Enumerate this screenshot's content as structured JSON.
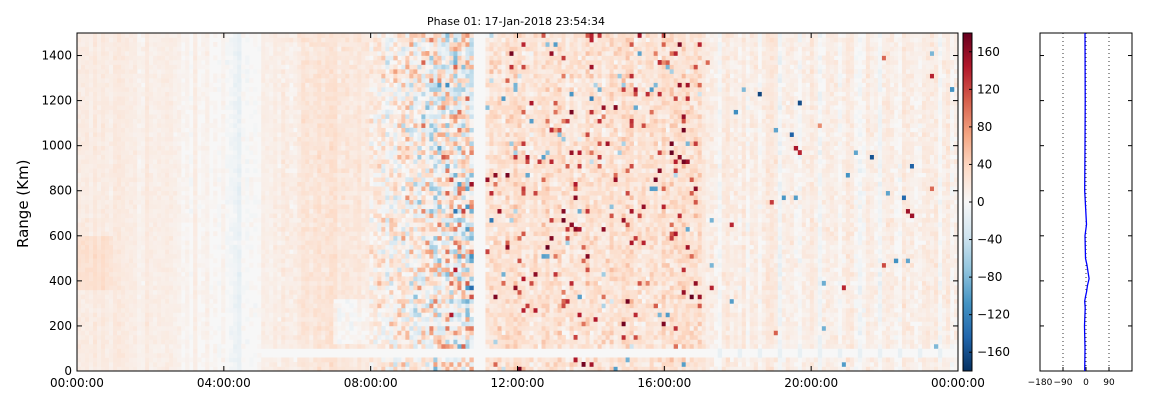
{
  "chart_data": [
    {
      "type": "heatmap",
      "title": "Phase 01: 17-Jan-2018 23:54:34",
      "xlabel": "",
      "ylabel": "Range (Km)",
      "x_tick_labels": [
        "00:00:00",
        "04:00:00",
        "08:00:00",
        "12:00:00",
        "16:00:00",
        "20:00:00",
        "00:00:00"
      ],
      "x_range_hours": [
        0,
        24
      ],
      "y_tick_labels": [
        "0",
        "200",
        "400",
        "600",
        "800",
        "1000",
        "1200",
        "1400"
      ],
      "ylim": [
        0,
        1500
      ],
      "colorbar": {
        "colormap": "RdBu_r",
        "vmin": -180,
        "vmax": 180,
        "tick_labels": [
          "−160",
          "−120",
          "−80",
          "−40",
          "0",
          "40",
          "80",
          "120",
          "160"
        ]
      },
      "regions": [
        {
          "hours": [
            0,
            5.5
          ],
          "phase": "small positive, smooth"
        },
        {
          "hours": [
            5.5,
            8
          ],
          "phase": "moderate positive band"
        },
        {
          "hours": [
            8,
            10.7
          ],
          "phase": "high variance, strongly mixed positive and negative"
        },
        {
          "hours": [
            10.8,
            11.1
          ],
          "phase": "blank data gap"
        },
        {
          "hours": [
            11.1,
            17
          ],
          "phase": "positive with speckle"
        },
        {
          "hours": [
            17,
            24
          ],
          "phase": "small positive with vertical striping"
        }
      ],
      "grid": false,
      "legend": "none"
    },
    {
      "type": "line",
      "title": "",
      "xlabel": "",
      "ylabel": "",
      "x_tick_labels": [
        "−180",
        "−90",
        "0",
        "90"
      ],
      "xlim": [
        -180,
        180
      ],
      "ylim": [
        0,
        1500
      ],
      "reference_lines_x": [
        -90,
        0,
        90
      ],
      "series": [
        {
          "color": "#0000ff",
          "x": [
            -5,
            -4,
            -6,
            -3,
            -5,
            -2,
            2,
            6,
            12,
            8,
            4,
            -2,
            -4,
            2,
            -5,
            -4,
            -3,
            -4
          ],
          "y": [
            0,
            100,
            200,
            280,
            310,
            330,
            350,
            380,
            410,
            440,
            470,
            500,
            600,
            650,
            800,
            1000,
            1200,
            1500
          ]
        }
      ]
    }
  ]
}
